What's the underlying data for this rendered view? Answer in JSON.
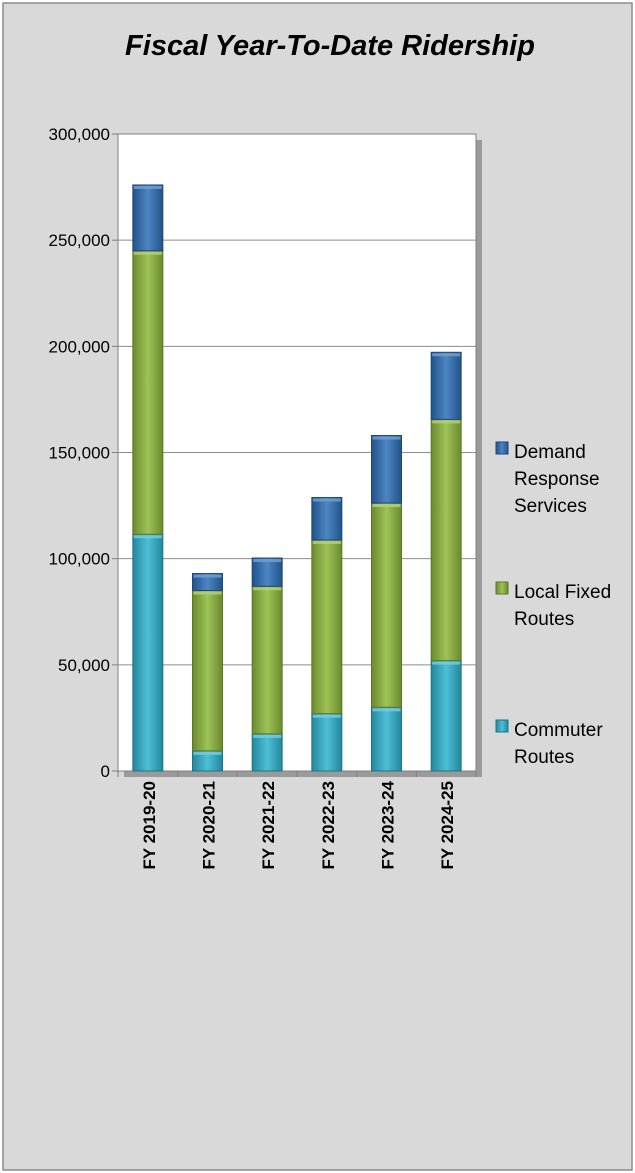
{
  "chart_data": {
    "type": "bar",
    "stacked": true,
    "title": "Fiscal Year-To-Date Ridership",
    "xlabel": "",
    "ylabel": "",
    "categories": [
      "FY 2019-20",
      "FY 2020-21",
      "FY 2021-22",
      "FY 2022-23",
      "FY 2023-24",
      "FY 2024-25"
    ],
    "series": [
      {
        "name": "Commuter Routes",
        "legend_lines": [
          "Commuter",
          "Routes"
        ],
        "color": "#2fb4d0",
        "values": [
          111500,
          9500,
          17500,
          27000,
          30000,
          52000
        ]
      },
      {
        "name": "Local Fixed Routes",
        "legend_lines": [
          "Local Fixed",
          "Routes"
        ],
        "color": "#8db83a",
        "values": [
          133500,
          75500,
          69500,
          81800,
          96200,
          113600
        ]
      },
      {
        "name": "Demand Response Services",
        "legend_lines": [
          "Demand",
          "Response",
          "Services"
        ],
        "color": "#2d6fb8",
        "values": [
          31000,
          8000,
          13300,
          20000,
          31800,
          31600
        ]
      }
    ],
    "ylim": [
      0,
      300000
    ],
    "yticks": [
      0,
      50000,
      100000,
      150000,
      200000,
      250000,
      300000
    ],
    "ytick_labels": [
      "0",
      "50,000",
      "100,000",
      "150,000",
      "200,000",
      "250,000",
      "300,000"
    ],
    "grid": true,
    "legend_position": "right"
  }
}
